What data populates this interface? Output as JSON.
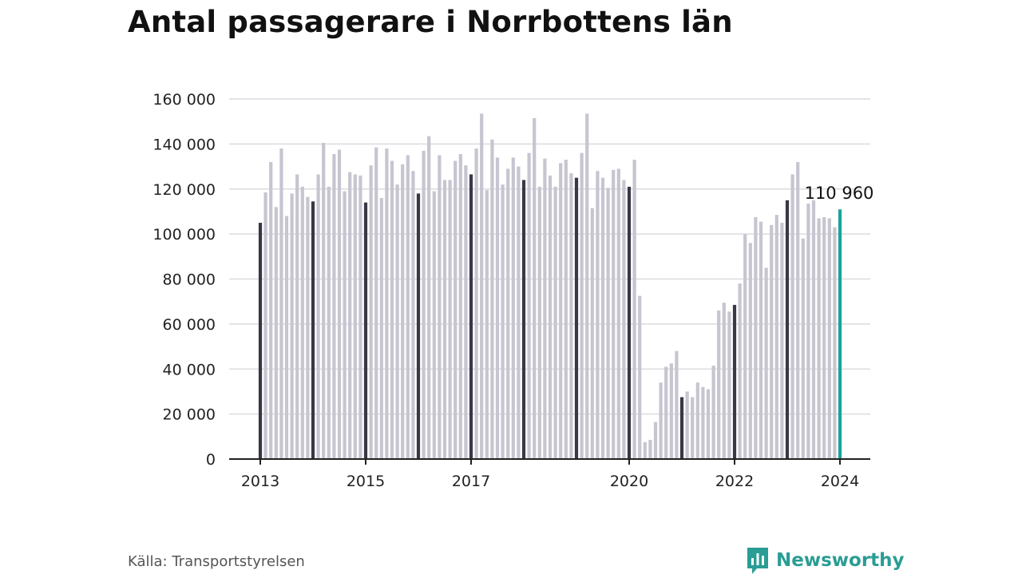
{
  "title": "Antal passagerare i Norrbottens län",
  "source": "Källa: Transportstyrelsen",
  "brand": "Newsworthy",
  "brand_icon": "bar-chart-speech-bubble-icon",
  "colors": {
    "bar": "#c6c5d0",
    "january_bar": "#3a3846",
    "latest_bar": "#1aa39a",
    "grid": "#dcdce0",
    "axis": "#222222",
    "brand": "#2a9d94"
  },
  "chart_data": {
    "type": "bar",
    "title": "Antal passagerare i Norrbottens län",
    "xlabel": "",
    "ylabel": "",
    "start": "2013-01",
    "frequency": "monthly",
    "ylim": [
      0,
      160000
    ],
    "yticks": [
      0,
      20000,
      40000,
      60000,
      80000,
      100000,
      120000,
      140000,
      160000
    ],
    "ytick_labels": [
      "0",
      "20 000",
      "40 000",
      "60 000",
      "80 000",
      "100 000",
      "120 000",
      "140 000",
      "160 000"
    ],
    "xtick_labels": [
      {
        "label": "2013",
        "index": 0
      },
      {
        "label": "2015",
        "index": 20
      },
      {
        "label": "2017",
        "index": 40
      },
      {
        "label": "2020",
        "index": 70
      },
      {
        "label": "2022",
        "index": 90
      },
      {
        "label": "2024",
        "index": 110
      }
    ],
    "highlight_every": 10,
    "annotation": {
      "index": 110,
      "label": "110 960"
    },
    "values": [
      105000,
      118500,
      132000,
      112000,
      138000,
      108000,
      118000,
      126500,
      121000,
      116500,
      114500,
      126500,
      140500,
      121000,
      135500,
      137500,
      119000,
      127500,
      126500,
      126000,
      114000,
      130500,
      138500,
      116000,
      138000,
      132500,
      122000,
      131000,
      135000,
      128000,
      118000,
      137000,
      143500,
      119000,
      135000,
      124000,
      124000,
      132500,
      135500,
      130500,
      126500,
      138000,
      153500,
      119500,
      142000,
      134000,
      122000,
      129000,
      134000,
      130000,
      124000,
      136000,
      151500,
      121000,
      133500,
      126000,
      121000,
      131500,
      133000,
      127000,
      125000,
      136000,
      153500,
      111500,
      128000,
      125000,
      120500,
      128500,
      129000,
      124000,
      121000,
      133000,
      72500,
      7500,
      8500,
      16500,
      34000,
      41000,
      42500,
      48000,
      27500,
      30000,
      27500,
      34000,
      32000,
      31000,
      41500,
      66000,
      69500,
      65500,
      68500,
      78000,
      100000,
      96000,
      107500,
      105500,
      85000,
      104000,
      108500,
      105000,
      115000,
      126500,
      132000,
      98000,
      113500,
      115000,
      107000,
      107500,
      107000,
      103000,
      110960
    ]
  }
}
